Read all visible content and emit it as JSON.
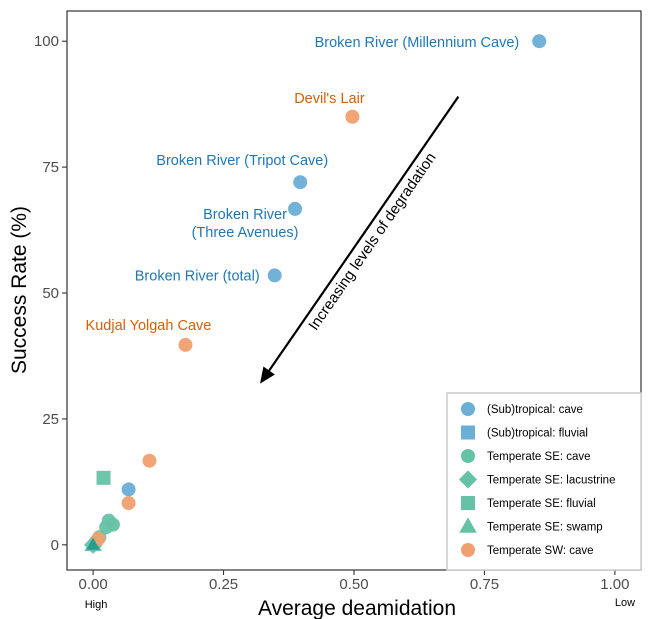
{
  "chart_data": {
    "type": "scatter",
    "xlabel": "Average deamidation",
    "ylabel": "Success Rate (%)",
    "xlim": [
      -0.05,
      1.05
    ],
    "ylim": [
      -5,
      106
    ],
    "x_ticks": [
      0,
      0.25,
      0.5,
      0.75,
      1
    ],
    "x_tick_labels": [
      "0.00",
      "0.25",
      "0.50",
      "0.75",
      "1.00"
    ],
    "y_ticks": [
      0,
      25,
      50,
      75,
      100
    ],
    "y_tick_labels": [
      "0",
      "25",
      "50",
      "75",
      "100"
    ],
    "x_end_labels": {
      "left": "High",
      "right": "Low"
    },
    "grid": false,
    "legend_position": "bottom-right",
    "colors": {
      "subtropical": "#6baed6",
      "temperate_se": "#66c2a5",
      "temperate_sw": "#f0a070",
      "label_blue": "#1f78b4",
      "label_orange": "#d95f02",
      "teal_dark": "#2a9d8f"
    },
    "series": [
      {
        "name": "(Sub)tropical: cave",
        "shape": "circle",
        "color": "#6baed6",
        "points": [
          {
            "x": 0.855,
            "y": 100,
            "label": "Broken River (Millennium Cave)"
          },
          {
            "x": 0.397,
            "y": 72,
            "label": "Broken River (Tripot Cave)"
          },
          {
            "x": 0.387,
            "y": 66.7,
            "label": "Broken River\n(Three Avenues)"
          },
          {
            "x": 0.348,
            "y": 53.5,
            "label": "Broken River (total)"
          },
          {
            "x": 0.068,
            "y": 11
          }
        ]
      },
      {
        "name": "(Sub)tropical: fluvial",
        "shape": "square",
        "color": "#6baed6",
        "points": []
      },
      {
        "name": "Temperate SE: cave",
        "shape": "circle",
        "color": "#66c2a5",
        "points": [
          {
            "x": 0.03,
            "y": 4.8
          },
          {
            "x": 0.038,
            "y": 4.0
          },
          {
            "x": 0.025,
            "y": 3.5
          },
          {
            "x": 0.012,
            "y": 1.5
          },
          {
            "x": 0.005,
            "y": 0.5
          }
        ]
      },
      {
        "name": "Temperate SE: lacustrine",
        "shape": "diamond",
        "color": "#66c2a5",
        "points": [
          {
            "x": 0.0,
            "y": 0.0
          }
        ]
      },
      {
        "name": "Temperate SE: fluvial",
        "shape": "square",
        "color": "#66c2a5",
        "points": [
          {
            "x": 0.02,
            "y": 13.3
          }
        ]
      },
      {
        "name": "Temperate SE: swamp",
        "shape": "triangle",
        "color": "#66c2a5",
        "points": [
          {
            "x": 0.0,
            "y": 0.0
          }
        ]
      },
      {
        "name": "Temperate SW: cave",
        "shape": "circle",
        "color": "#f0a070",
        "points": [
          {
            "x": 0.497,
            "y": 85,
            "label": "Devil's Lair"
          },
          {
            "x": 0.177,
            "y": 39.7,
            "label": "Kudjal Yolgah Cave"
          },
          {
            "x": 0.108,
            "y": 16.7
          },
          {
            "x": 0.068,
            "y": 8.3
          },
          {
            "x": 0.01,
            "y": 1.2
          }
        ]
      }
    ],
    "annotation": {
      "text": "Increasing levels of degradation",
      "arrow_from": {
        "x": 0.7,
        "y": 89
      },
      "arrow_to": {
        "x": 0.32,
        "y": 32
      }
    }
  }
}
